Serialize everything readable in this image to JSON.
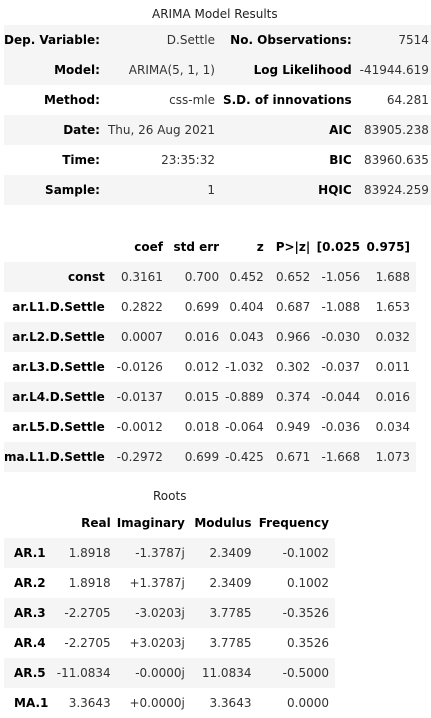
{
  "summary": {
    "caption": "ARIMA Model Results",
    "rows": [
      [
        "Dep. Variable:",
        "D.Settle",
        "No. Observations:",
        "7514"
      ],
      [
        "Model:",
        "ARIMA(5, 1, 1)",
        "Log Likelihood",
        "-41944.619"
      ],
      [
        "Method:",
        "css-mle",
        "S.D. of innovations",
        "64.281"
      ],
      [
        "Date:",
        "Thu, 26 Aug 2021",
        "AIC",
        "83905.238"
      ],
      [
        "Time:",
        "23:35:32",
        "BIC",
        "83960.635"
      ],
      [
        "Sample:",
        "1",
        "HQIC",
        "83924.259"
      ]
    ]
  },
  "coefficients": {
    "headers": [
      "",
      "coef",
      "std err",
      "z",
      "P>|z|",
      "[0.025",
      "0.975]"
    ],
    "rows": [
      [
        "const",
        "0.3161",
        "0.700",
        "0.452",
        "0.652",
        "-1.056",
        "1.688"
      ],
      [
        "ar.L1.D.Settle",
        "0.2822",
        "0.699",
        "0.404",
        "0.687",
        "-1.088",
        "1.653"
      ],
      [
        "ar.L2.D.Settle",
        "0.0007",
        "0.016",
        "0.043",
        "0.966",
        "-0.030",
        "0.032"
      ],
      [
        "ar.L3.D.Settle",
        "-0.0126",
        "0.012",
        "-1.032",
        "0.302",
        "-0.037",
        "0.011"
      ],
      [
        "ar.L4.D.Settle",
        "-0.0137",
        "0.015",
        "-0.889",
        "0.374",
        "-0.044",
        "0.016"
      ],
      [
        "ar.L5.D.Settle",
        "-0.0012",
        "0.018",
        "-0.064",
        "0.949",
        "-0.036",
        "0.034"
      ],
      [
        "ma.L1.D.Settle",
        "-0.2972",
        "0.699",
        "-0.425",
        "0.671",
        "-1.668",
        "1.073"
      ]
    ]
  },
  "roots": {
    "caption": "Roots",
    "headers": [
      "",
      "Real",
      "Imaginary",
      "Modulus",
      "Frequency"
    ],
    "rows": [
      [
        "AR.1",
        "1.8918",
        "-1.3787j",
        "2.3409",
        "-0.1002"
      ],
      [
        "AR.2",
        "1.8918",
        "+1.3787j",
        "2.3409",
        "0.1002"
      ],
      [
        "AR.3",
        "-2.2705",
        "-3.0203j",
        "3.7785",
        "-0.3526"
      ],
      [
        "AR.4",
        "-2.2705",
        "+3.0203j",
        "3.7785",
        "0.3526"
      ],
      [
        "AR.5",
        "-11.0834",
        "-0.0000j",
        "11.0834",
        "-0.5000"
      ],
      [
        "MA.1",
        "3.3643",
        "+0.0000j",
        "3.3643",
        "0.0000"
      ]
    ]
  }
}
